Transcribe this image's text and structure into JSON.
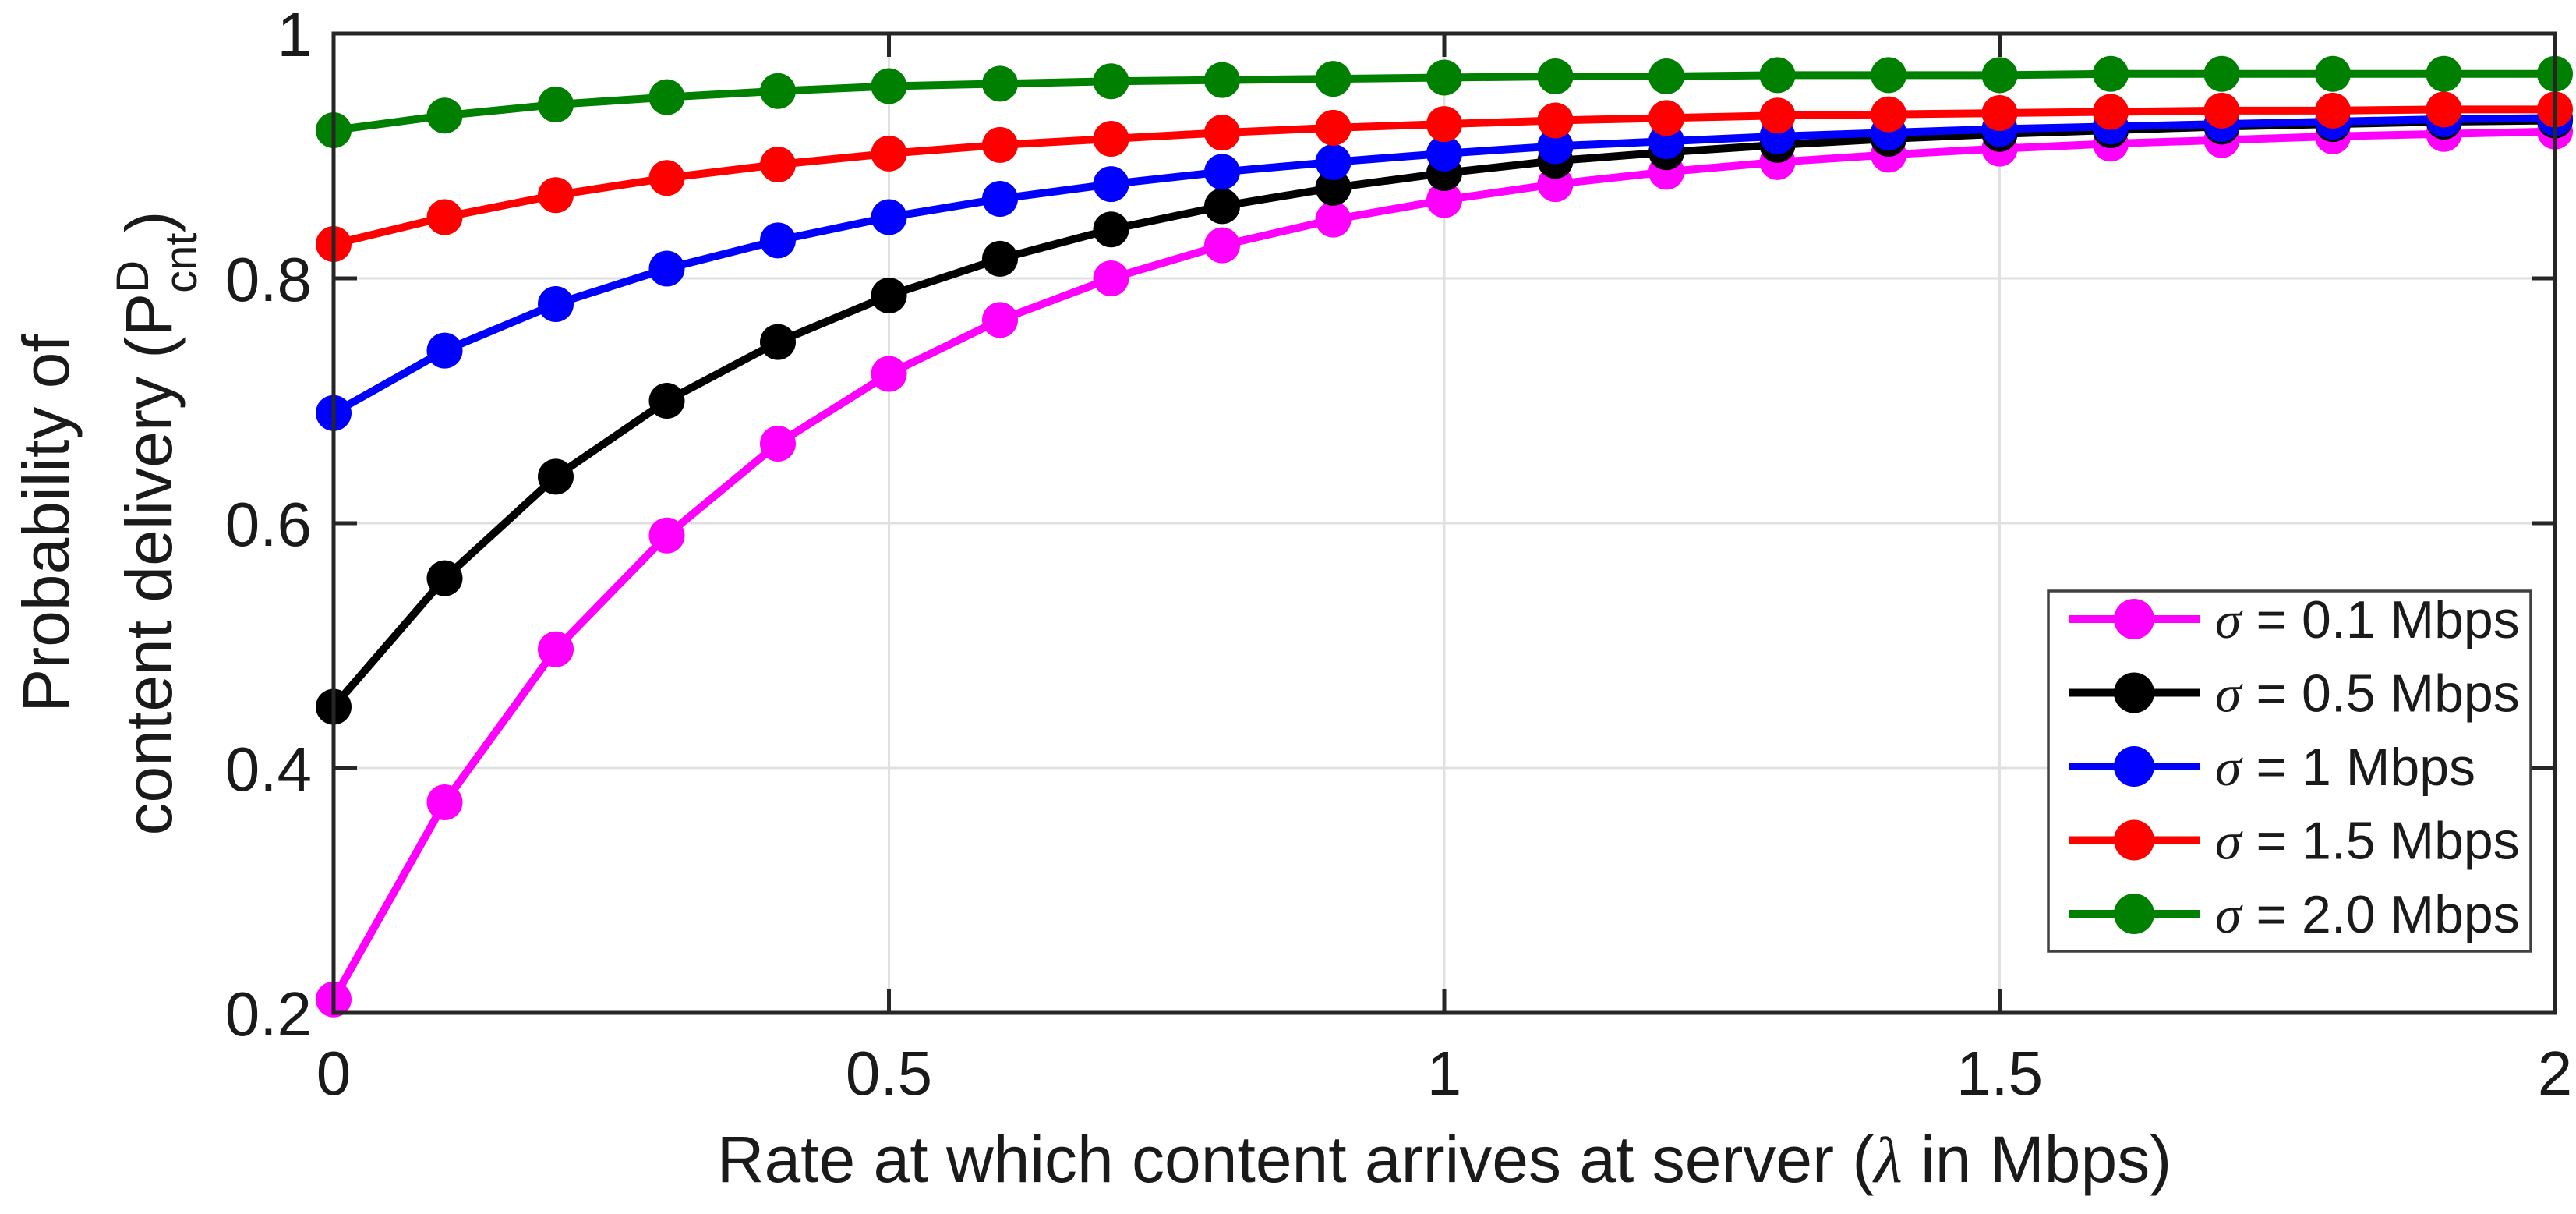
{
  "chart_data": {
    "type": "line",
    "title": "",
    "xlabel": "Rate at which content arrives at server (λ in Mbps)",
    "xlabel_parts": {
      "pre": "Rate at which content arrives at server (",
      "symbol": "λ",
      "post": " in Mbps)"
    },
    "ylabel": "Probability of content delivery (P^D_cnt)",
    "ylabel_line1": "Probability of",
    "ylabel_line2_parts": {
      "pre": "content delivery (P",
      "sup": "D",
      "sub": "cnt",
      "post": ")"
    },
    "xlim": [
      0,
      2
    ],
    "ylim": [
      0.2,
      1.0
    ],
    "xticks": {
      "values": [
        0,
        0.5,
        1,
        1.5,
        2
      ],
      "labels": [
        "0",
        "0.5",
        "1",
        "1.5",
        "2"
      ]
    },
    "yticks": {
      "values": [
        1.0,
        0.8,
        0.6,
        0.4,
        0.2
      ],
      "labels": [
        "1",
        "0.8",
        "0.6",
        "0.4",
        "0.2"
      ]
    },
    "grid": true,
    "legend_position": "lower-right-inside",
    "x": [
      0,
      0.1,
      0.2,
      0.3,
      0.4,
      0.5,
      0.6,
      0.7,
      0.8,
      0.9,
      1.0,
      1.1,
      1.2,
      1.3,
      1.4,
      1.5,
      1.6,
      1.7,
      1.8,
      1.9,
      2.0
    ],
    "series": [
      {
        "name": "sigma-0.1-mbps",
        "legend_symbol": "σ",
        "legend_text": " = 0.1 Mbps",
        "color": "#ff00ff",
        "values": [
          0.211,
          0.372,
          0.497,
          0.59,
          0.665,
          0.722,
          0.766,
          0.8,
          0.827,
          0.848,
          0.864,
          0.877,
          0.887,
          0.895,
          0.901,
          0.906,
          0.91,
          0.913,
          0.916,
          0.918,
          0.92
        ]
      },
      {
        "name": "sigma-0.5-mbps",
        "legend_symbol": "σ",
        "legend_text": " = 0.5 Mbps",
        "color": "#000000",
        "values": [
          0.45,
          0.555,
          0.638,
          0.7,
          0.748,
          0.786,
          0.816,
          0.84,
          0.859,
          0.874,
          0.886,
          0.896,
          0.903,
          0.909,
          0.914,
          0.918,
          0.921,
          0.924,
          0.926,
          0.928,
          0.929
        ]
      },
      {
        "name": "sigma-1-mbps",
        "legend_symbol": "σ",
        "legend_text": " = 1 Mbps",
        "color": "#0000ff",
        "values": [
          0.69,
          0.741,
          0.779,
          0.808,
          0.831,
          0.85,
          0.865,
          0.877,
          0.887,
          0.895,
          0.902,
          0.908,
          0.912,
          0.916,
          0.919,
          0.922,
          0.924,
          0.926,
          0.928,
          0.93,
          0.931
        ]
      },
      {
        "name": "sigma-1.5-mbps",
        "legend_symbol": "σ",
        "legend_text": " = 1.5 Mbps",
        "color": "#ff0000",
        "values": [
          0.828,
          0.85,
          0.868,
          0.882,
          0.893,
          0.902,
          0.909,
          0.914,
          0.919,
          0.923,
          0.926,
          0.929,
          0.931,
          0.933,
          0.934,
          0.935,
          0.936,
          0.937,
          0.937,
          0.938,
          0.938
        ]
      },
      {
        "name": "sigma-2.0-mbps",
        "legend_symbol": "σ",
        "legend_text": " = 2.0 Mbps",
        "color": "#008000",
        "values": [
          0.921,
          0.933,
          0.942,
          0.948,
          0.953,
          0.957,
          0.959,
          0.961,
          0.962,
          0.963,
          0.964,
          0.965,
          0.965,
          0.966,
          0.966,
          0.966,
          0.967,
          0.967,
          0.967,
          0.967,
          0.967
        ]
      }
    ]
  },
  "colors": {
    "axis": "#262626",
    "grid": "#e0e0e0",
    "legend_border": "#404040",
    "background": "#ffffff",
    "text": "#1a1a1a"
  }
}
